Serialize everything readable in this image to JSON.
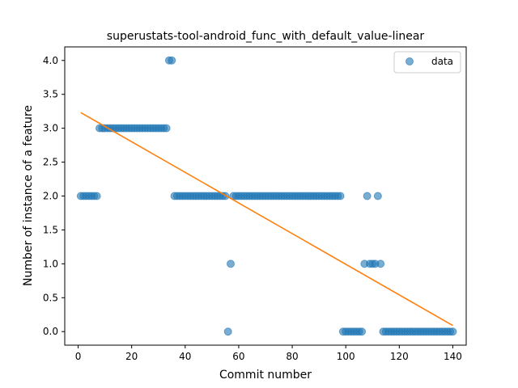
{
  "chart_data": {
    "type": "scatter",
    "title": "superustats-tool-android_func_with_default_value-linear",
    "xlabel": "Commit number",
    "ylabel": "Number of instance of a feature",
    "xlim": [
      -5,
      145
    ],
    "ylim": [
      -0.2,
      4.2
    ],
    "xticks": [
      0,
      20,
      40,
      60,
      80,
      100,
      120,
      140
    ],
    "yticks": [
      0.0,
      0.5,
      1.0,
      1.5,
      2.0,
      2.5,
      3.0,
      3.5,
      4.0
    ],
    "xtick_labels": [
      "0",
      "20",
      "40",
      "60",
      "80",
      "100",
      "120",
      "140"
    ],
    "ytick_labels": [
      "0.0",
      "0.5",
      "1.0",
      "1.5",
      "2.0",
      "2.5",
      "3.0",
      "3.5",
      "4.0"
    ],
    "grid": false,
    "legend_position": "top-right",
    "series": [
      {
        "name": "data",
        "kind": "scatter",
        "color": "#1f77b4",
        "points": [
          [
            1,
            2
          ],
          [
            2,
            2
          ],
          [
            3,
            2
          ],
          [
            4,
            2
          ],
          [
            5,
            2
          ],
          [
            6,
            2
          ],
          [
            7,
            2
          ],
          [
            8,
            3
          ],
          [
            9,
            3
          ],
          [
            10,
            3
          ],
          [
            11,
            3
          ],
          [
            12,
            3
          ],
          [
            13,
            3
          ],
          [
            14,
            3
          ],
          [
            15,
            3
          ],
          [
            16,
            3
          ],
          [
            17,
            3
          ],
          [
            18,
            3
          ],
          [
            19,
            3
          ],
          [
            20,
            3
          ],
          [
            21,
            3
          ],
          [
            22,
            3
          ],
          [
            23,
            3
          ],
          [
            24,
            3
          ],
          [
            25,
            3
          ],
          [
            26,
            3
          ],
          [
            27,
            3
          ],
          [
            28,
            3
          ],
          [
            29,
            3
          ],
          [
            30,
            3
          ],
          [
            31,
            3
          ],
          [
            32,
            3
          ],
          [
            33,
            3
          ],
          [
            34,
            4
          ],
          [
            35,
            4
          ],
          [
            36,
            2
          ],
          [
            37,
            2
          ],
          [
            38,
            2
          ],
          [
            39,
            2
          ],
          [
            40,
            2
          ],
          [
            41,
            2
          ],
          [
            42,
            2
          ],
          [
            43,
            2
          ],
          [
            44,
            2
          ],
          [
            45,
            2
          ],
          [
            46,
            2
          ],
          [
            47,
            2
          ],
          [
            48,
            2
          ],
          [
            49,
            2
          ],
          [
            50,
            2
          ],
          [
            51,
            2
          ],
          [
            52,
            2
          ],
          [
            53,
            2
          ],
          [
            54,
            2
          ],
          [
            55,
            2
          ],
          [
            56,
            0
          ],
          [
            57,
            1
          ],
          [
            58,
            2
          ],
          [
            59,
            2
          ],
          [
            60,
            2
          ],
          [
            61,
            2
          ],
          [
            62,
            2
          ],
          [
            63,
            2
          ],
          [
            64,
            2
          ],
          [
            65,
            2
          ],
          [
            66,
            2
          ],
          [
            67,
            2
          ],
          [
            68,
            2
          ],
          [
            69,
            2
          ],
          [
            70,
            2
          ],
          [
            71,
            2
          ],
          [
            72,
            2
          ],
          [
            73,
            2
          ],
          [
            74,
            2
          ],
          [
            75,
            2
          ],
          [
            76,
            2
          ],
          [
            77,
            2
          ],
          [
            78,
            2
          ],
          [
            79,
            2
          ],
          [
            80,
            2
          ],
          [
            81,
            2
          ],
          [
            82,
            2
          ],
          [
            83,
            2
          ],
          [
            84,
            2
          ],
          [
            85,
            2
          ],
          [
            86,
            2
          ],
          [
            87,
            2
          ],
          [
            88,
            2
          ],
          [
            89,
            2
          ],
          [
            90,
            2
          ],
          [
            91,
            2
          ],
          [
            92,
            2
          ],
          [
            93,
            2
          ],
          [
            94,
            2
          ],
          [
            95,
            2
          ],
          [
            96,
            2
          ],
          [
            97,
            2
          ],
          [
            98,
            2
          ],
          [
            99,
            0
          ],
          [
            100,
            0
          ],
          [
            101,
            0
          ],
          [
            102,
            0
          ],
          [
            103,
            0
          ],
          [
            104,
            0
          ],
          [
            105,
            0
          ],
          [
            106,
            0
          ],
          [
            107,
            1
          ],
          [
            108,
            2
          ],
          [
            109,
            1
          ],
          [
            110,
            1
          ],
          [
            111,
            1
          ],
          [
            112,
            2
          ],
          [
            113,
            1
          ],
          [
            114,
            0
          ],
          [
            115,
            0
          ],
          [
            116,
            0
          ],
          [
            117,
            0
          ],
          [
            118,
            0
          ],
          [
            119,
            0
          ],
          [
            120,
            0
          ],
          [
            121,
            0
          ],
          [
            122,
            0
          ],
          [
            123,
            0
          ],
          [
            124,
            0
          ],
          [
            125,
            0
          ],
          [
            126,
            0
          ],
          [
            127,
            0
          ],
          [
            128,
            0
          ],
          [
            129,
            0
          ],
          [
            130,
            0
          ],
          [
            131,
            0
          ],
          [
            132,
            0
          ],
          [
            133,
            0
          ],
          [
            134,
            0
          ],
          [
            135,
            0
          ],
          [
            136,
            0
          ],
          [
            137,
            0
          ],
          [
            138,
            0
          ],
          [
            139,
            0
          ],
          [
            140,
            0
          ]
        ]
      },
      {
        "kind": "line",
        "color": "#ff7f0e",
        "points": [
          [
            1,
            3.23
          ],
          [
            140,
            0.09
          ]
        ]
      }
    ]
  }
}
